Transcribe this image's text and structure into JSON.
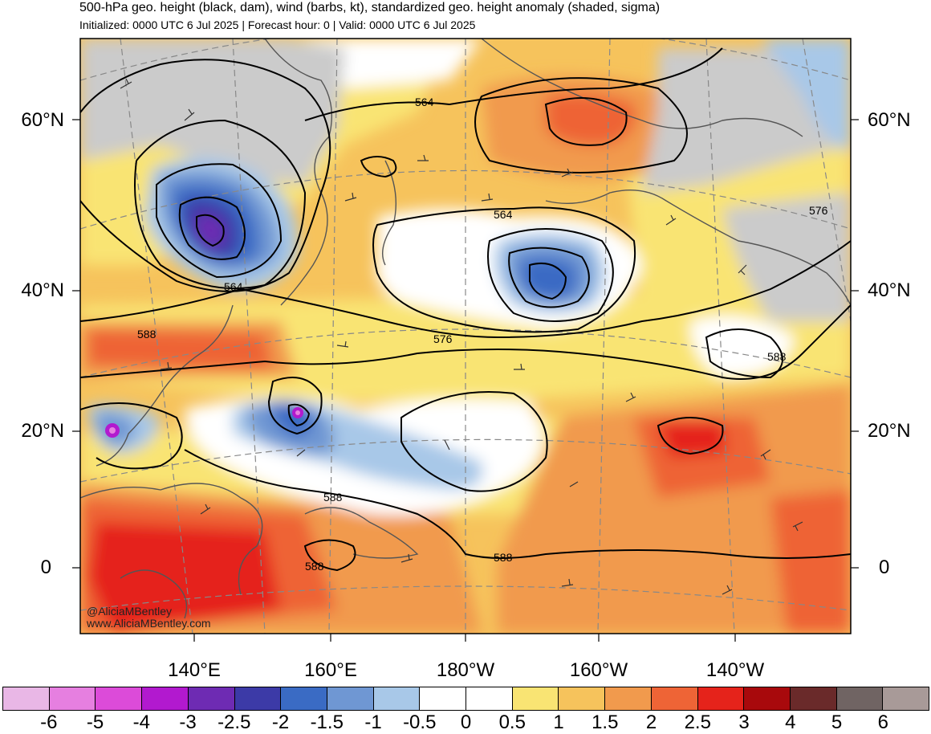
{
  "header": {
    "title": "500-hPa geo. height (black, dam), wind (barbs, kt), standardized geo. height anomaly (shaded, sigma)",
    "subtitle": "Initialized: 0000 UTC 6 Jul 2025 | Forecast hour: 0 | Valid: 0000 UTC 6 Jul 2025"
  },
  "axes": {
    "lat_labels": [
      "60°N",
      "40°N",
      "20°N",
      "0"
    ],
    "lon_labels": [
      "140°E",
      "160°E",
      "180°W",
      "160°W",
      "140°W"
    ]
  },
  "contour_labels": [
    "564",
    "564",
    "564",
    "576",
    "576",
    "588",
    "588",
    "588",
    "588",
    "588"
  ],
  "credit": {
    "handle": "@AliciaMBentley",
    "site": "www.AliciaMBentley.com"
  },
  "colorbar": {
    "swatches": [
      "#e9b7e6",
      "#e67fe0",
      "#dc4bd9",
      "#b219cf",
      "#6e2bb3",
      "#3c3aa7",
      "#3a6bc4",
      "#6f97d3",
      "#a8c8e8",
      "#ffffff",
      "#ffffff",
      "#f9e473",
      "#f6c35c",
      "#f19a4d",
      "#ee6436",
      "#e5231b",
      "#a8090c",
      "#6a2a2a",
      "#706463",
      "#a89a98"
    ],
    "labels": [
      "-6",
      "-5",
      "-4",
      "-3",
      "-2.5",
      "-2",
      "-1.5",
      "-1",
      "-0.5",
      "0",
      "0.5",
      "1",
      "1.5",
      "2",
      "2.5",
      "3",
      "4",
      "5",
      "6"
    ]
  },
  "colors": {
    "land_gray": "#cbcbcb",
    "contour": "#000000",
    "coast": "#555555",
    "grid": "#888888"
  }
}
